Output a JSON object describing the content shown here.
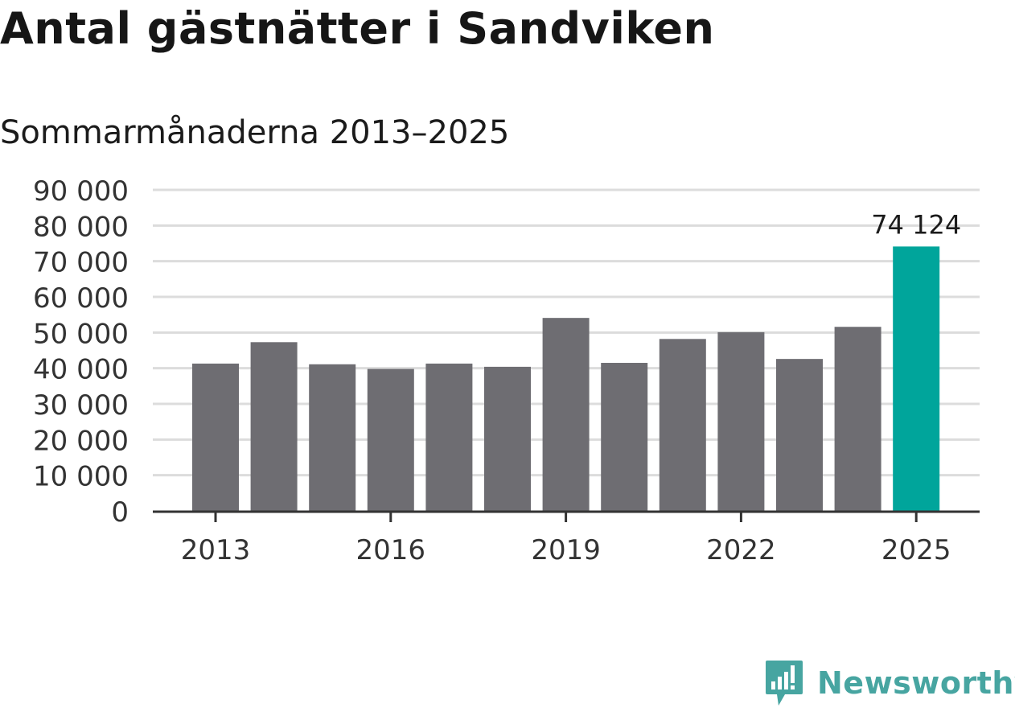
{
  "header": {
    "title": "Antal gästnätter i Sandviken",
    "subtitle": "Sommarmånaderna 2013–2025"
  },
  "brand": {
    "name": "Newsworthy",
    "color": "#47a5a1",
    "icon": "chart-bubble-icon"
  },
  "chart_data": {
    "type": "bar",
    "title": "Antal gästnätter i Sandviken",
    "subtitle": "Sommarmånaderna 2013–2025",
    "xlabel": "",
    "ylabel": "",
    "categories": [
      "2013",
      "2014",
      "2015",
      "2016",
      "2017",
      "2018",
      "2019",
      "2020",
      "2021",
      "2022",
      "2023",
      "2024",
      "2025"
    ],
    "values": [
      41300,
      47300,
      41100,
      39800,
      41300,
      40400,
      54100,
      41500,
      48200,
      50100,
      42600,
      51600,
      74124
    ],
    "x_tick_labels": [
      "2013",
      "2016",
      "2019",
      "2022",
      "2025"
    ],
    "ylim": [
      0,
      90000
    ],
    "y_ticks": [
      0,
      10000,
      20000,
      30000,
      40000,
      50000,
      60000,
      70000,
      80000,
      90000
    ],
    "y_tick_labels": [
      "0",
      "10 000",
      "20 000",
      "30 000",
      "40 000",
      "50 000",
      "60 000",
      "70 000",
      "80 000",
      "90 000"
    ],
    "data_labels": [
      {
        "category": "2025",
        "text": "74 124"
      }
    ],
    "highlight_category": "2025",
    "colors": {
      "bar": "#6e6d72",
      "highlight": "#00a59b",
      "grid": "#dcdcdc",
      "axis": "#333333"
    },
    "grid": true
  }
}
